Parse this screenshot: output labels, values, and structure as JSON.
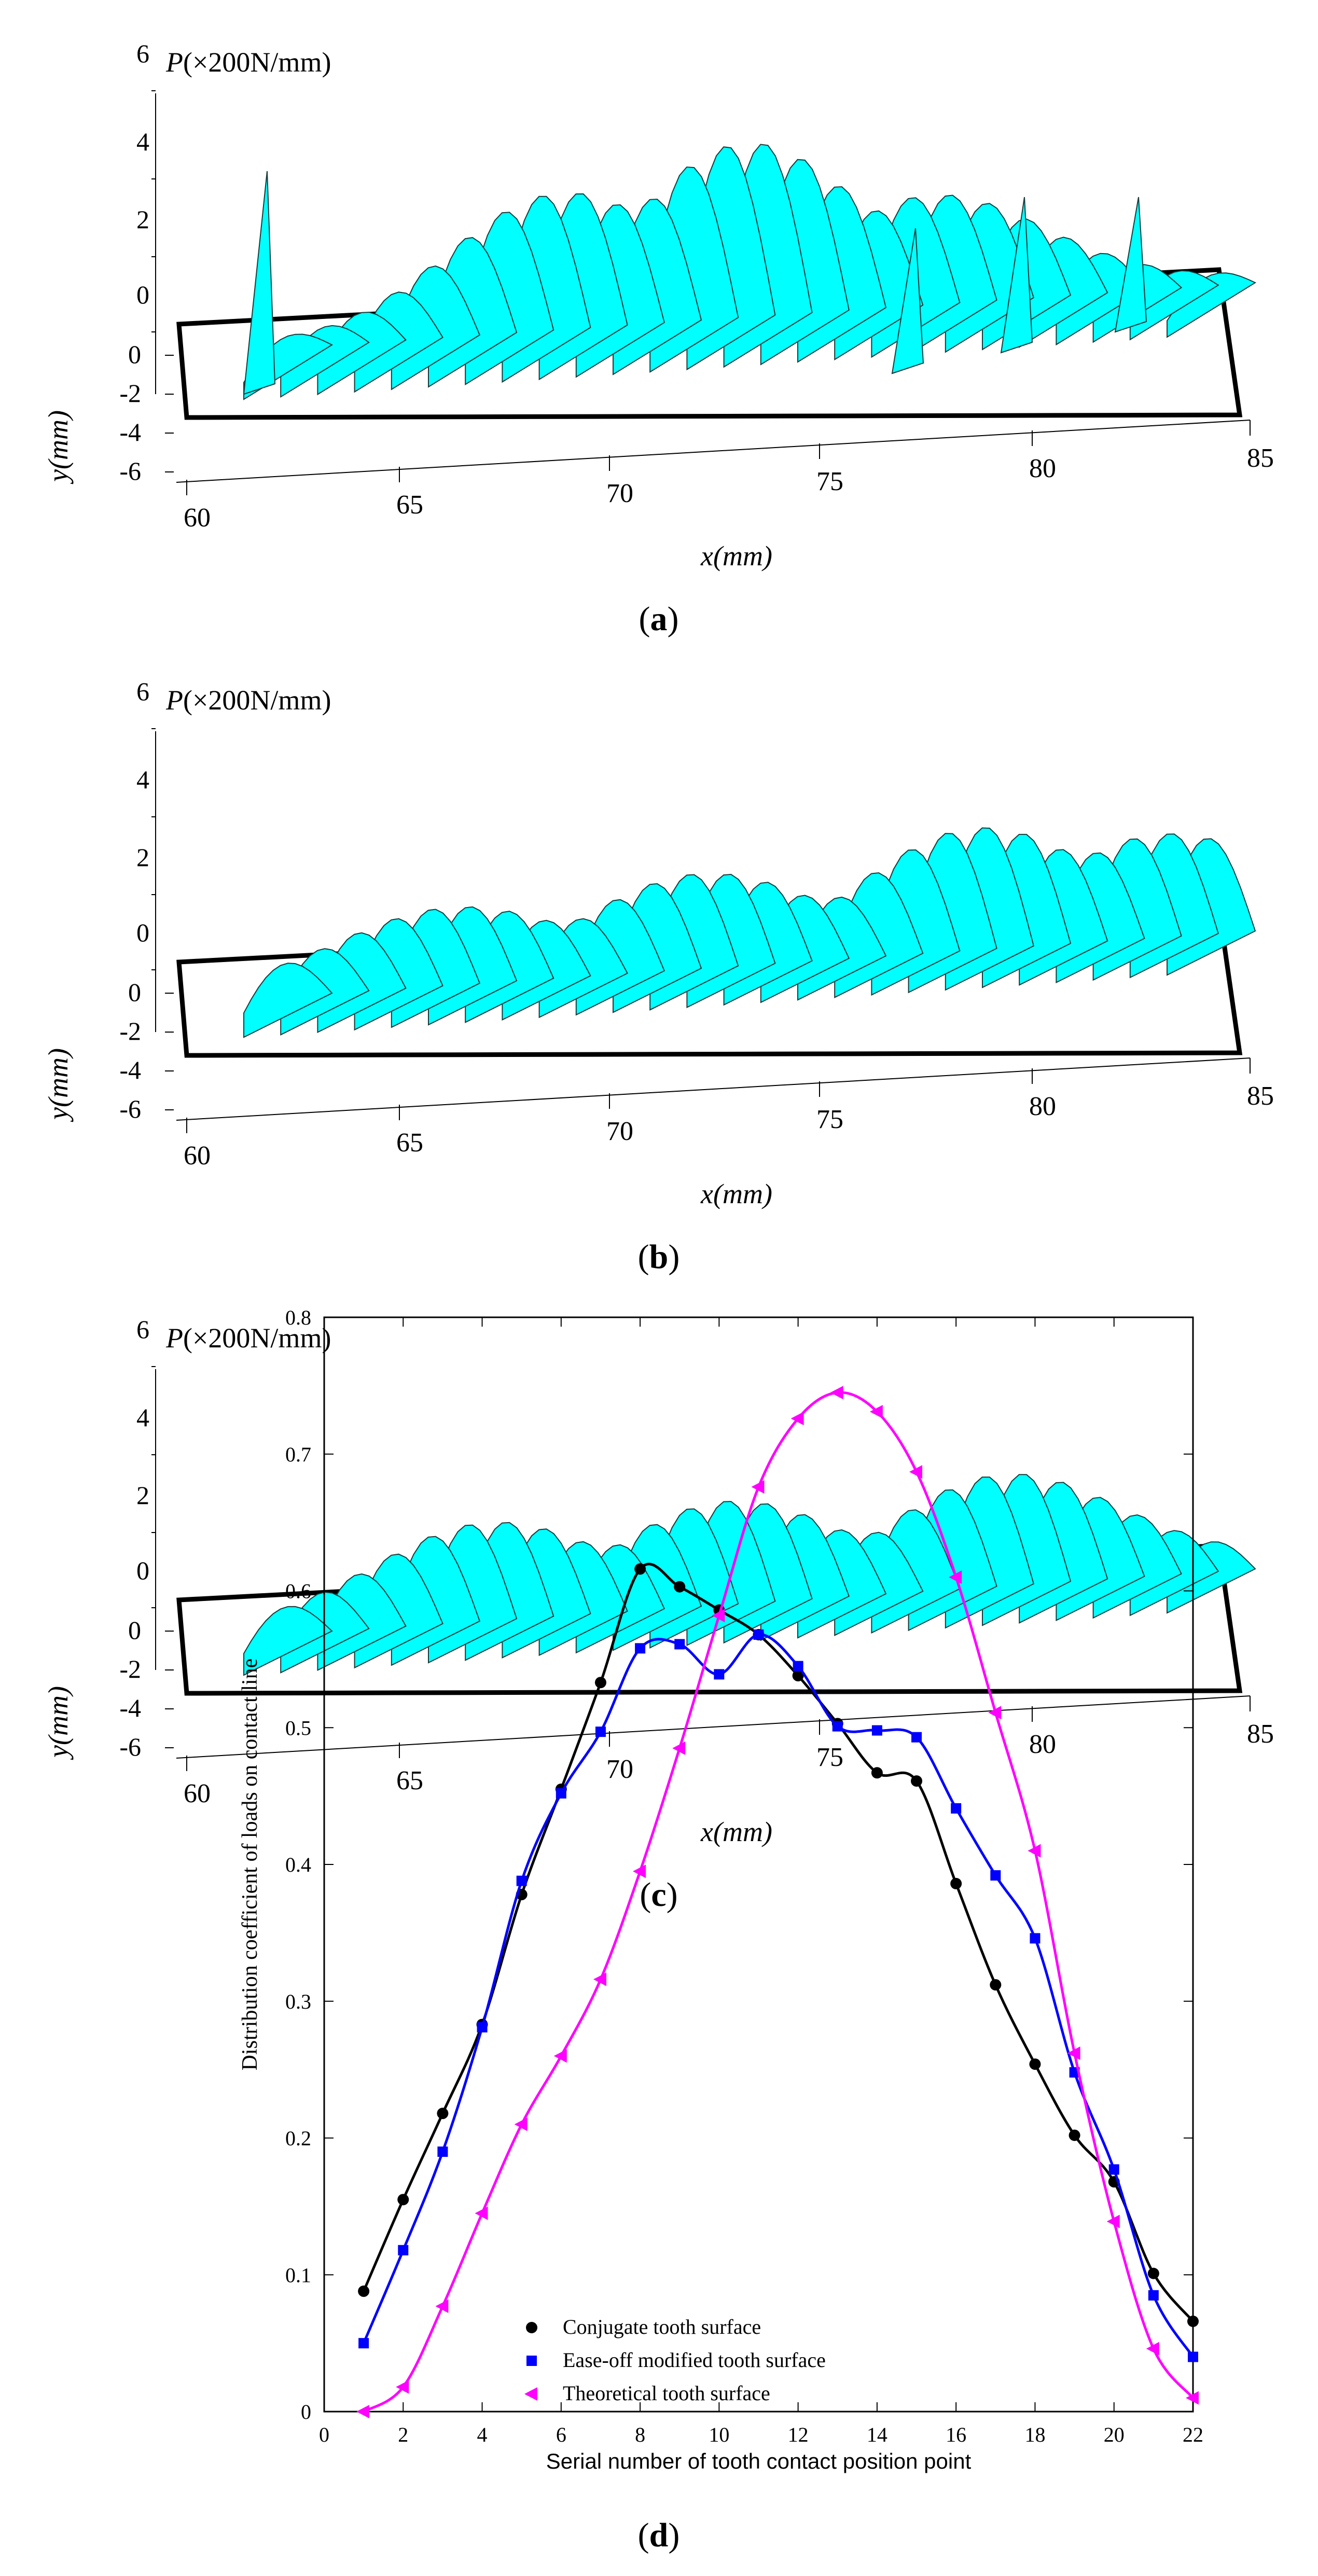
{
  "panels": [
    {
      "caption_open": "(",
      "caption_letter": "a",
      "caption_close": ")",
      "plabel": "(×200N/mm)",
      "pvar": "P",
      "z_ticks": [
        "6",
        "4",
        "2",
        "0"
      ],
      "y_ticks": [
        "0",
        "-2",
        "-4",
        "-6"
      ],
      "x_ticks": [
        "60",
        "65",
        "70",
        "75",
        "80",
        "85"
      ],
      "xlabel": "x(mm)",
      "ylabel": "y(mm)"
    },
    {
      "caption_open": "(",
      "caption_letter": "b",
      "caption_close": ")",
      "plabel": "(×200N/mm)",
      "pvar": "P",
      "z_ticks": [
        "6",
        "4",
        "2",
        "0"
      ],
      "y_ticks": [
        "0",
        "-2",
        "-4",
        "-6"
      ],
      "x_ticks": [
        "60",
        "65",
        "70",
        "75",
        "80",
        "85"
      ],
      "xlabel": "x(mm)",
      "ylabel": "y(mm)"
    },
    {
      "caption_open": "(",
      "caption_letter": "c",
      "caption_close": ")",
      "plabel": "(×200N/mm)",
      "pvar": "P",
      "z_ticks": [
        "6",
        "4",
        "2",
        "0"
      ],
      "y_ticks": [
        "0",
        "-2",
        "-4",
        "-6"
      ],
      "x_ticks": [
        "60",
        "65",
        "70",
        "75",
        "80",
        "85"
      ],
      "xlabel": "x(mm)",
      "ylabel": "y(mm)"
    }
  ],
  "caption_d": {
    "open": "(",
    "letter": "d",
    "close": ")"
  },
  "colors": {
    "surface": "#00FFFF",
    "conjugate": "#000000",
    "easeoff": "#0000FF",
    "theoretical": "#FF00FF"
  },
  "chart_data": {
    "type": "line",
    "title": "",
    "xlabel": "Serial number of tooth contact position point",
    "ylabel": "Distribution coefficient of loads on contact line",
    "xlim": [
      0,
      22
    ],
    "ylim": [
      0,
      0.8
    ],
    "x_ticks": [
      0,
      2,
      4,
      6,
      8,
      10,
      12,
      14,
      16,
      18,
      20,
      22
    ],
    "y_ticks": [
      0,
      0.1,
      0.2,
      0.3,
      0.4,
      0.5,
      0.6,
      0.7,
      0.8
    ],
    "x": [
      1,
      2,
      3,
      4,
      5,
      6,
      7,
      8,
      9,
      10,
      11,
      12,
      13,
      14,
      15,
      16,
      17,
      18,
      19,
      20,
      21,
      22
    ],
    "legend_position": "bottom-left",
    "series": [
      {
        "name": "Conjugate tooth surface",
        "marker": "circle",
        "values": [
          0.088,
          0.155,
          0.218,
          0.283,
          0.378,
          0.455,
          0.533,
          0.616,
          0.603,
          0.586,
          0.568,
          0.538,
          0.503,
          0.467,
          0.461,
          0.386,
          0.312,
          0.254,
          0.202,
          0.168,
          0.101,
          0.066
        ]
      },
      {
        "name": "Ease-off modified tooth surface",
        "marker": "square",
        "values": [
          0.05,
          0.118,
          0.19,
          0.281,
          0.388,
          0.452,
          0.497,
          0.558,
          0.561,
          0.539,
          0.568,
          0.545,
          0.501,
          0.498,
          0.493,
          0.441,
          0.392,
          0.346,
          0.248,
          0.177,
          0.085,
          0.04
        ]
      },
      {
        "name": "Theoretical tooth surface",
        "marker": "triangle-left",
        "values": [
          0.0,
          0.018,
          0.077,
          0.145,
          0.21,
          0.26,
          0.316,
          0.395,
          0.485,
          0.582,
          0.676,
          0.726,
          0.745,
          0.731,
          0.687,
          0.61,
          0.511,
          0.41,
          0.262,
          0.139,
          0.046,
          0.01
        ]
      }
    ]
  }
}
